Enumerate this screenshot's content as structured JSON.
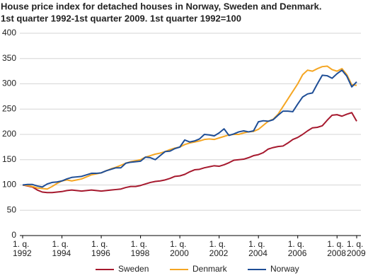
{
  "chart_data": {
    "type": "line",
    "title": "House price index for detached houses in Norway, Sweden and Denmark.",
    "subtitle": "1st quarter 1992-1st quarter 2009. 1st quarter 1992=100",
    "x": [
      1992,
      1992.25,
      1992.5,
      1992.75,
      1993,
      1993.25,
      1993.5,
      1993.75,
      1994,
      1994.25,
      1994.5,
      1994.75,
      1995,
      1995.25,
      1995.5,
      1995.75,
      1996,
      1996.25,
      1996.5,
      1996.75,
      1997,
      1997.25,
      1997.5,
      1997.75,
      1998,
      1998.25,
      1998.5,
      1998.75,
      1999,
      1999.25,
      1999.5,
      1999.75,
      2000,
      2000.25,
      2000.5,
      2000.75,
      2001,
      2001.25,
      2001.5,
      2001.75,
      2002,
      2002.25,
      2002.5,
      2002.75,
      2003,
      2003.25,
      2003.5,
      2003.75,
      2004,
      2004.25,
      2004.5,
      2004.75,
      2005,
      2005.25,
      2005.5,
      2005.75,
      2006,
      2006.25,
      2006.5,
      2006.75,
      2007,
      2007.25,
      2007.5,
      2007.75,
      2008,
      2008.25,
      2008.5,
      2008.75,
      2009
    ],
    "series": [
      {
        "name": "Sweden",
        "color": "#a6192e",
        "values": [
          100,
          98,
          96,
          90,
          86,
          85,
          85,
          86,
          87,
          89,
          90,
          89,
          88,
          89,
          90,
          89,
          88,
          89,
          90,
          91,
          92,
          95,
          97,
          97,
          99,
          102,
          105,
          107,
          108,
          110,
          113,
          117,
          118,
          121,
          126,
          130,
          131,
          134,
          136,
          138,
          137,
          140,
          144,
          149,
          150,
          151,
          154,
          158,
          160,
          164,
          171,
          174,
          176,
          177,
          183,
          190,
          194,
          200,
          207,
          213,
          214,
          217,
          228,
          238,
          239,
          236,
          240,
          243,
          226
        ]
      },
      {
        "name": "Denmark",
        "color": "#f5a623",
        "values": [
          100,
          99,
          97,
          94,
          93,
          92,
          97,
          103,
          108,
          110,
          108,
          110,
          112,
          116,
          120,
          122,
          124,
          128,
          132,
          135,
          139,
          143,
          146,
          148,
          150,
          155,
          158,
          161,
          163,
          166,
          170,
          173,
          175,
          180,
          183,
          185,
          187,
          190,
          191,
          190,
          193,
          196,
          199,
          200,
          200,
          203,
          205,
          206,
          210,
          218,
          226,
          230,
          240,
          255,
          270,
          285,
          300,
          318,
          327,
          325,
          330,
          334,
          335,
          328,
          325,
          330,
          318,
          298,
          297
        ]
      },
      {
        "name": "Norway",
        "color": "#1f4e96",
        "values": [
          100,
          101,
          101,
          98,
          96,
          102,
          105,
          106,
          108,
          112,
          115,
          116,
          117,
          120,
          123,
          123,
          124,
          128,
          131,
          134,
          134,
          143,
          145,
          146,
          147,
          155,
          154,
          150,
          158,
          166,
          167,
          172,
          175,
          189,
          185,
          187,
          191,
          200,
          199,
          197,
          203,
          211,
          198,
          201,
          205,
          207,
          205,
          207,
          225,
          227,
          226,
          229,
          238,
          246,
          246,
          245,
          260,
          274,
          280,
          282,
          300,
          317,
          316,
          311,
          320,
          327,
          315,
          294,
          304
        ]
      }
    ],
    "xlim": [
      1992,
      2009
    ],
    "xticks": [
      {
        "value": 1992,
        "label": "1. q.\n1992"
      },
      {
        "value": 1994,
        "label": "1. q.\n1994"
      },
      {
        "value": 1996,
        "label": "1. q.\n1996"
      },
      {
        "value": 1998,
        "label": "1. q.\n1998"
      },
      {
        "value": 2000,
        "label": "1. q.\n2000"
      },
      {
        "value": 2002,
        "label": "1. q.\n2002"
      },
      {
        "value": 2004,
        "label": "1. q.\n2004"
      },
      {
        "value": 2006,
        "label": "1. q.\n2006"
      },
      {
        "value": 2008,
        "label": "1. q.\n2008"
      },
      {
        "value": 2009,
        "label": "1. q.\n2009"
      }
    ],
    "ylim": [
      0,
      400
    ],
    "yticks": [
      0,
      50,
      100,
      150,
      200,
      250,
      300,
      350,
      400
    ],
    "grid": true,
    "legend": "bottom"
  }
}
